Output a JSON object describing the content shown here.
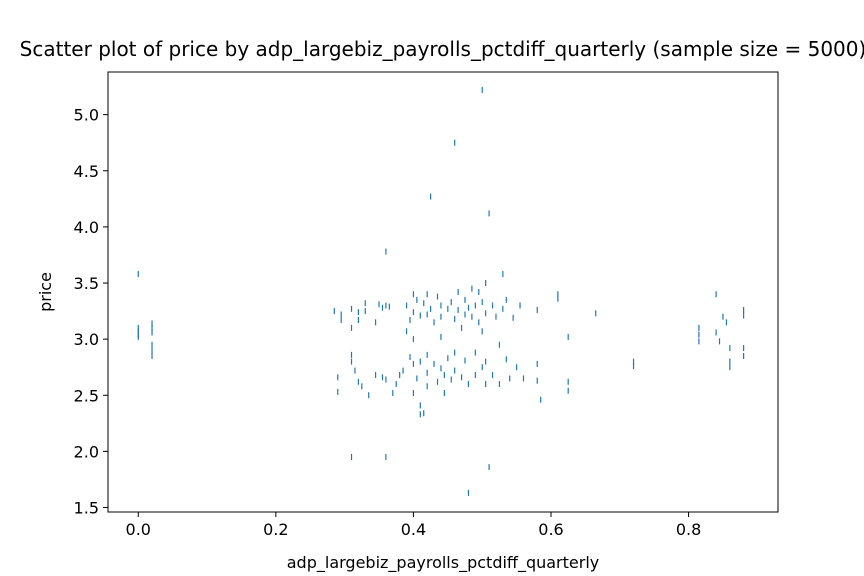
{
  "chart_data": {
    "type": "scatter",
    "title": "Scatter plot of price by adp_largebiz_payrolls_pctdiff_quarterly (sample size = 5000)",
    "xlabel": "adp_largebiz_payrolls_pctdiff_quarterly",
    "ylabel": "price",
    "xlim": [
      -0.044,
      0.93
    ],
    "ylim": [
      1.46,
      5.38
    ],
    "xticks": [
      0.0,
      0.2,
      0.4,
      0.6,
      0.8
    ],
    "xtick_labels": [
      "0.0",
      "0.2",
      "0.4",
      "0.6",
      "0.8"
    ],
    "yticks": [
      1.5,
      2.0,
      2.5,
      3.0,
      3.5,
      4.0,
      4.5,
      5.0
    ],
    "ytick_labels": [
      "1.5",
      "2.0",
      "2.5",
      "3.0",
      "3.5",
      "4.0",
      "4.5",
      "5.0"
    ],
    "grid": false,
    "marker_color": "#1f77b4",
    "points": [
      [
        0.0,
        3.58
      ],
      [
        0.0,
        3.1
      ],
      [
        0.0,
        3.07
      ],
      [
        0.0,
        3.04
      ],
      [
        0.0,
        3.02
      ],
      [
        0.02,
        3.14
      ],
      [
        0.02,
        3.1
      ],
      [
        0.02,
        3.06
      ],
      [
        0.02,
        2.95
      ],
      [
        0.02,
        2.9
      ],
      [
        0.02,
        2.85
      ],
      [
        0.285,
        3.25
      ],
      [
        0.29,
        2.66
      ],
      [
        0.29,
        2.53
      ],
      [
        0.295,
        3.22
      ],
      [
        0.295,
        3.17
      ],
      [
        0.31,
        3.27
      ],
      [
        0.31,
        3.1
      ],
      [
        0.31,
        2.86
      ],
      [
        0.31,
        2.8
      ],
      [
        0.31,
        1.95
      ],
      [
        0.315,
        2.72
      ],
      [
        0.32,
        3.24
      ],
      [
        0.32,
        3.17
      ],
      [
        0.32,
        2.62
      ],
      [
        0.325,
        2.58
      ],
      [
        0.33,
        3.32
      ],
      [
        0.33,
        3.25
      ],
      [
        0.335,
        2.5
      ],
      [
        0.345,
        3.15
      ],
      [
        0.345,
        2.68
      ],
      [
        0.35,
        3.31
      ],
      [
        0.355,
        3.28
      ],
      [
        0.355,
        2.66
      ],
      [
        0.36,
        3.78
      ],
      [
        0.36,
        3.3
      ],
      [
        0.36,
        2.64
      ],
      [
        0.36,
        1.95
      ],
      [
        0.365,
        3.29
      ],
      [
        0.37,
        2.52
      ],
      [
        0.375,
        2.6
      ],
      [
        0.38,
        2.68
      ],
      [
        0.385,
        2.72
      ],
      [
        0.39,
        3.3
      ],
      [
        0.39,
        3.07
      ],
      [
        0.395,
        3.17
      ],
      [
        0.395,
        2.84
      ],
      [
        0.4,
        3.4
      ],
      [
        0.4,
        3.24
      ],
      [
        0.4,
        3.0
      ],
      [
        0.4,
        2.78
      ],
      [
        0.4,
        2.52
      ],
      [
        0.405,
        3.35
      ],
      [
        0.405,
        2.65
      ],
      [
        0.41,
        3.21
      ],
      [
        0.41,
        2.8
      ],
      [
        0.41,
        2.41
      ],
      [
        0.41,
        2.33
      ],
      [
        0.415,
        3.32
      ],
      [
        0.415,
        2.34
      ],
      [
        0.42,
        3.4
      ],
      [
        0.42,
        3.22
      ],
      [
        0.42,
        2.86
      ],
      [
        0.42,
        2.7
      ],
      [
        0.42,
        2.58
      ],
      [
        0.425,
        3.27
      ],
      [
        0.425,
        4.27
      ],
      [
        0.43,
        3.15
      ],
      [
        0.43,
        2.78
      ],
      [
        0.435,
        3.38
      ],
      [
        0.435,
        2.62
      ],
      [
        0.44,
        3.3
      ],
      [
        0.44,
        3.2
      ],
      [
        0.44,
        3.02
      ],
      [
        0.44,
        2.74
      ],
      [
        0.445,
        2.68
      ],
      [
        0.445,
        2.52
      ],
      [
        0.45,
        3.27
      ],
      [
        0.45,
        2.83
      ],
      [
        0.455,
        3.33
      ],
      [
        0.455,
        2.64
      ],
      [
        0.46,
        4.75
      ],
      [
        0.46,
        3.18
      ],
      [
        0.46,
        2.88
      ],
      [
        0.46,
        2.72
      ],
      [
        0.465,
        3.42
      ],
      [
        0.465,
        3.26
      ],
      [
        0.47,
        3.1
      ],
      [
        0.47,
        2.66
      ],
      [
        0.475,
        3.35
      ],
      [
        0.475,
        3.22
      ],
      [
        0.475,
        2.81
      ],
      [
        0.48,
        3.28
      ],
      [
        0.48,
        2.6
      ],
      [
        0.48,
        1.63
      ],
      [
        0.485,
        3.45
      ],
      [
        0.485,
        3.2
      ],
      [
        0.49,
        3.3
      ],
      [
        0.49,
        2.88
      ],
      [
        0.49,
        2.68
      ],
      [
        0.495,
        3.42
      ],
      [
        0.495,
        3.15
      ],
      [
        0.5,
        5.22
      ],
      [
        0.5,
        3.33
      ],
      [
        0.5,
        3.07
      ],
      [
        0.5,
        2.75
      ],
      [
        0.505,
        3.5
      ],
      [
        0.505,
        3.23
      ],
      [
        0.505,
        2.8
      ],
      [
        0.505,
        2.6
      ],
      [
        0.51,
        4.12
      ],
      [
        0.51,
        1.86
      ],
      [
        0.515,
        3.3
      ],
      [
        0.515,
        2.68
      ],
      [
        0.52,
        3.2
      ],
      [
        0.525,
        2.95
      ],
      [
        0.525,
        2.6
      ],
      [
        0.53,
        3.58
      ],
      [
        0.53,
        3.27
      ],
      [
        0.535,
        3.35
      ],
      [
        0.535,
        2.82
      ],
      [
        0.54,
        2.65
      ],
      [
        0.545,
        3.19
      ],
      [
        0.55,
        2.75
      ],
      [
        0.555,
        3.3
      ],
      [
        0.56,
        2.65
      ],
      [
        0.58,
        3.26
      ],
      [
        0.58,
        2.78
      ],
      [
        0.58,
        2.63
      ],
      [
        0.585,
        2.46
      ],
      [
        0.61,
        3.4
      ],
      [
        0.61,
        3.36
      ],
      [
        0.625,
        3.02
      ],
      [
        0.625,
        2.62
      ],
      [
        0.625,
        2.54
      ],
      [
        0.665,
        3.23
      ],
      [
        0.72,
        2.8
      ],
      [
        0.72,
        2.76
      ],
      [
        0.815,
        3.1
      ],
      [
        0.815,
        3.04
      ],
      [
        0.815,
        2.98
      ],
      [
        0.84,
        3.4
      ],
      [
        0.84,
        3.06
      ],
      [
        0.845,
        2.98
      ],
      [
        0.85,
        3.2
      ],
      [
        0.855,
        3.15
      ],
      [
        0.86,
        2.92
      ],
      [
        0.86,
        2.8
      ],
      [
        0.86,
        2.75
      ],
      [
        0.88,
        3.26
      ],
      [
        0.88,
        3.21
      ],
      [
        0.88,
        2.92
      ],
      [
        0.88,
        2.85
      ]
    ]
  }
}
